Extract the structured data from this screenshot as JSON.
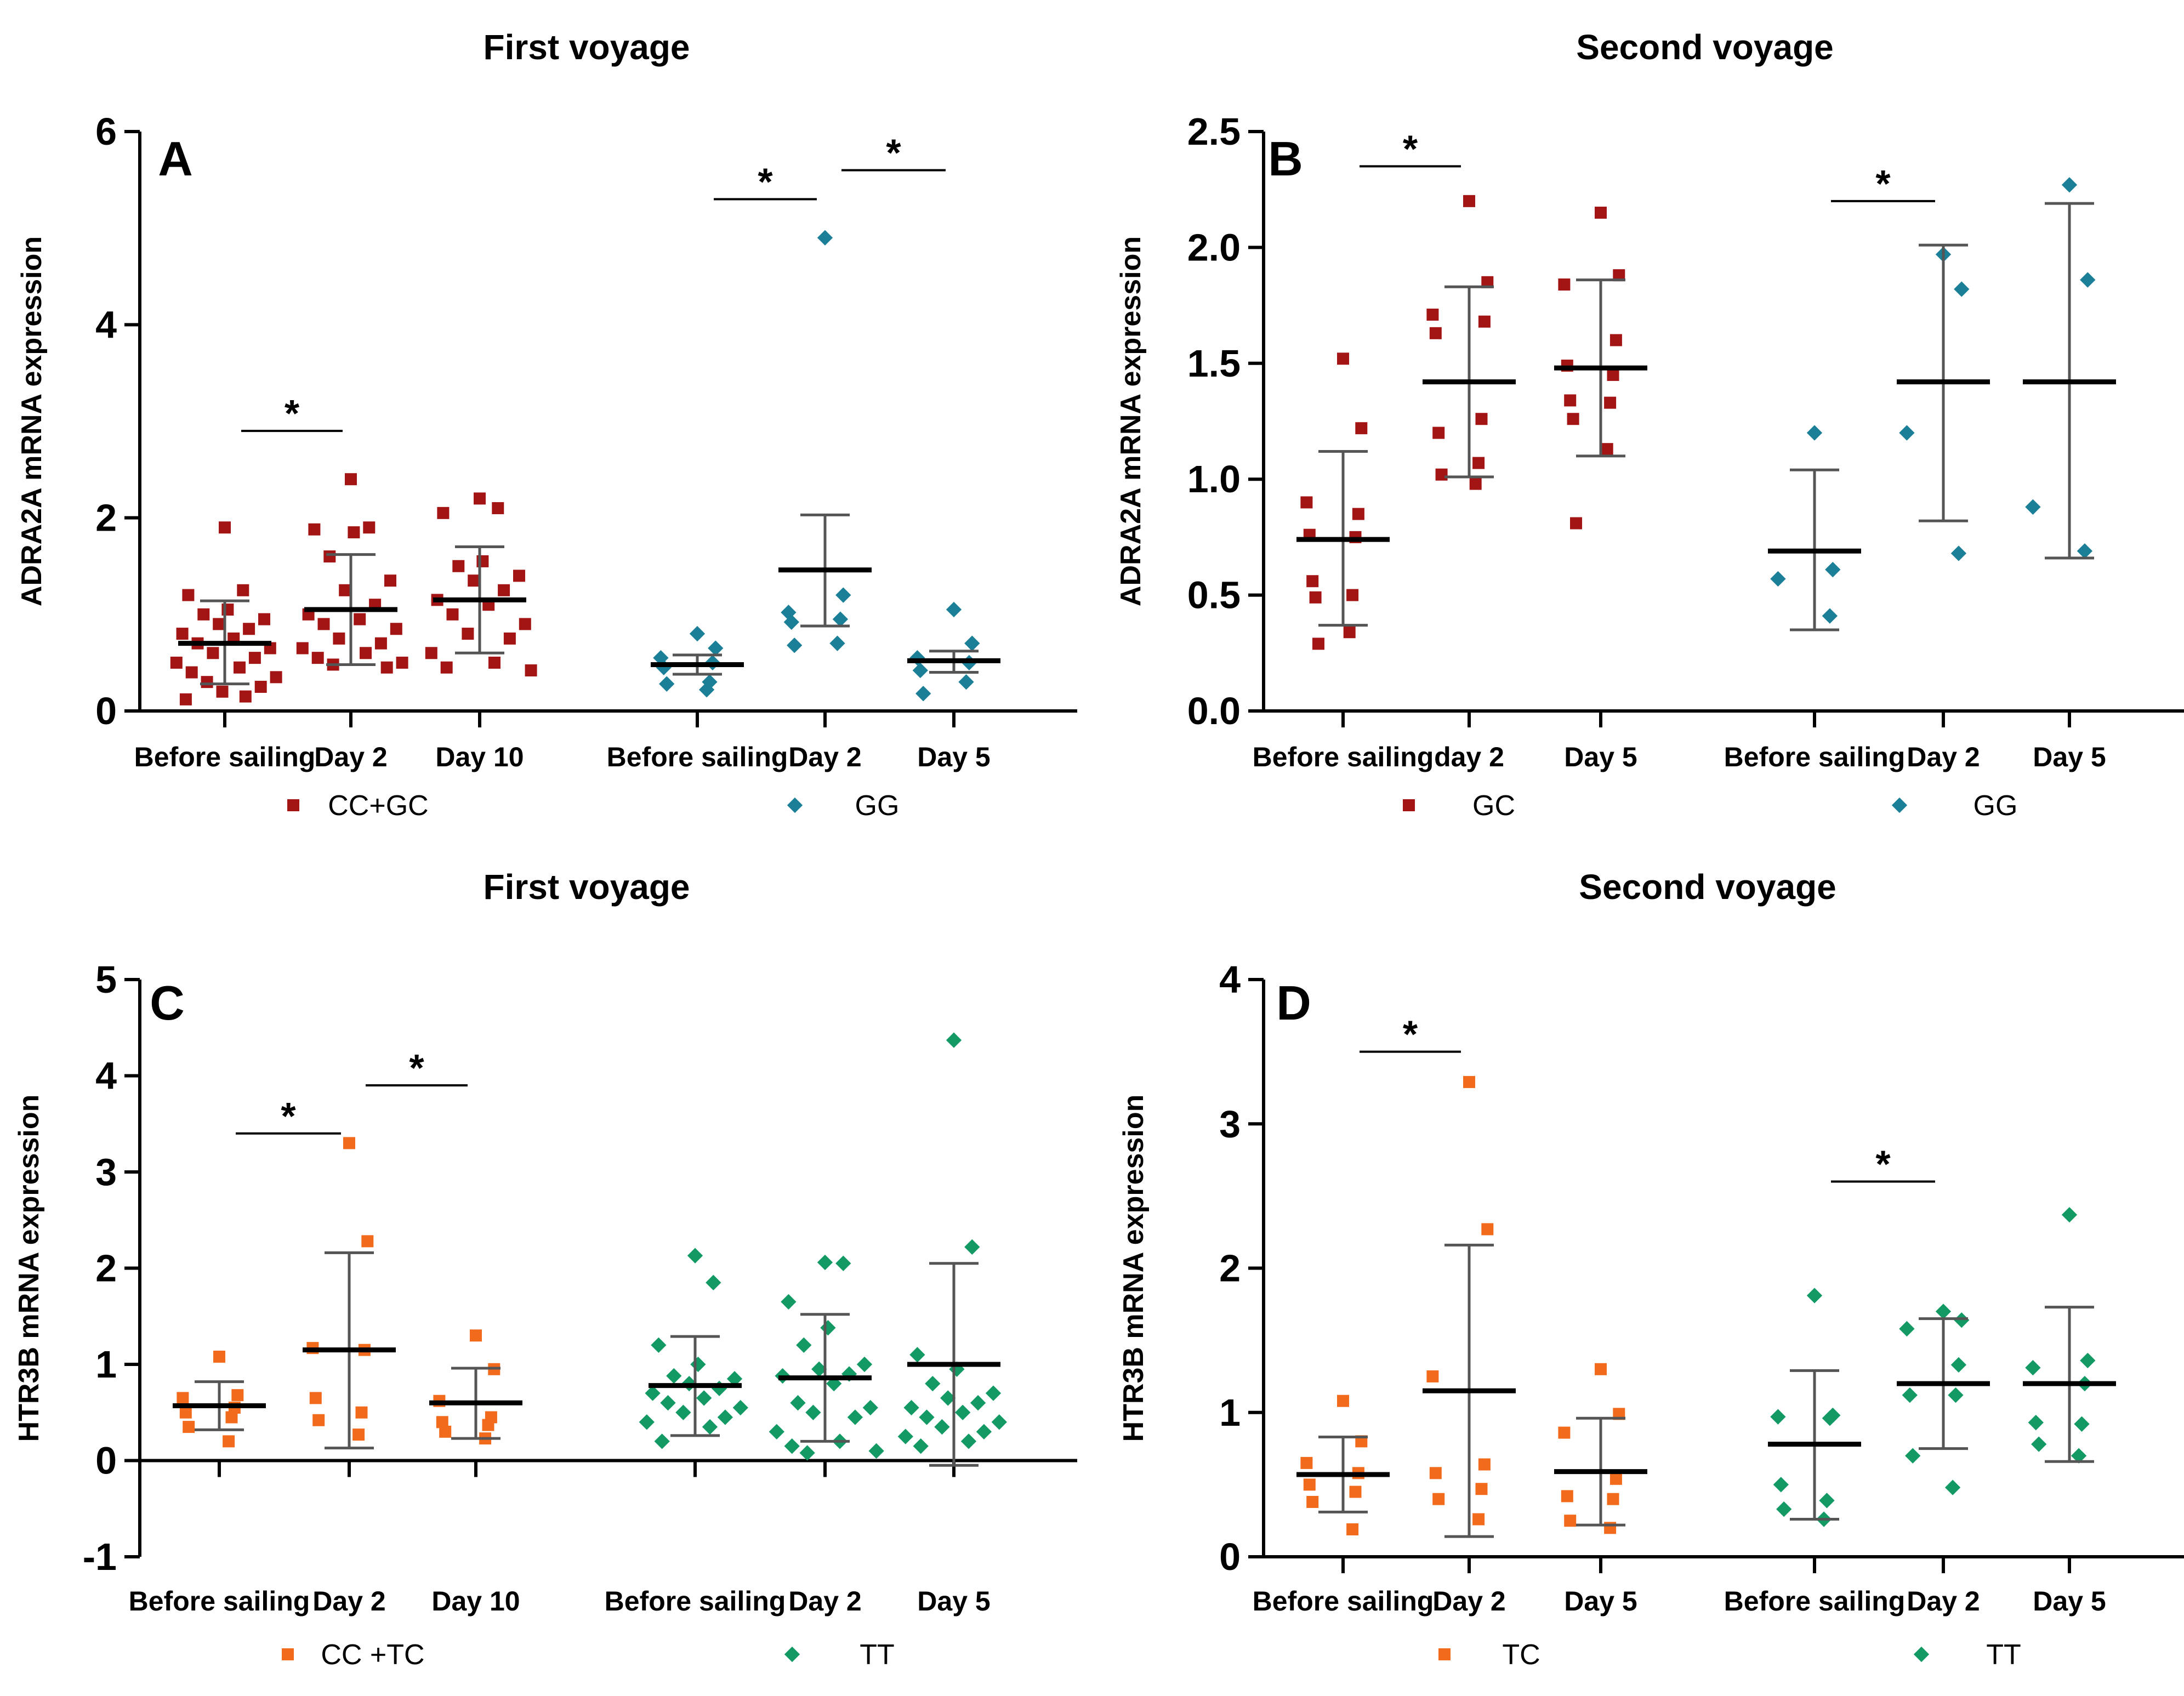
{
  "chart_data": [
    {
      "type": "scatter",
      "panel_label": "A",
      "title": "First voyage",
      "ylabel": "ADRA2A mRNA expression",
      "ylim": [
        0,
        6
      ],
      "yticks": [
        0,
        2,
        4,
        6
      ],
      "categories": [
        "Before sailing",
        "Day 2",
        "Day 10",
        "Before sailing",
        "Day 2",
        "Day 5"
      ],
      "legend": [
        {
          "name": "CC+GC",
          "marker": "square",
          "color": "#a31515"
        },
        {
          "name": "GG",
          "marker": "diamond",
          "color": "#1a7f97"
        }
      ],
      "groups": [
        {
          "category_index": 0,
          "series": 0,
          "mean": 0.7,
          "sd_low": 0.28,
          "sd_high": 1.14,
          "points": [
            1.9,
            1.25,
            1.2,
            1.05,
            1.0,
            0.95,
            0.9,
            0.85,
            0.8,
            0.75,
            0.7,
            0.65,
            0.6,
            0.55,
            0.5,
            0.45,
            0.4,
            0.35,
            0.3,
            0.25,
            0.2,
            0.15,
            0.12
          ]
        },
        {
          "category_index": 1,
          "series": 0,
          "mean": 1.05,
          "sd_low": 0.48,
          "sd_high": 1.62,
          "points": [
            2.4,
            1.9,
            1.88,
            1.85,
            1.6,
            1.35,
            1.25,
            1.1,
            1.0,
            0.95,
            0.9,
            0.85,
            0.75,
            0.7,
            0.65,
            0.6,
            0.55,
            0.5,
            0.48,
            0.45
          ]
        },
        {
          "category_index": 2,
          "series": 0,
          "mean": 1.15,
          "sd_low": 0.6,
          "sd_high": 1.7,
          "points": [
            2.2,
            2.1,
            2.05,
            1.55,
            1.5,
            1.4,
            1.35,
            1.25,
            1.15,
            1.1,
            1.0,
            0.9,
            0.8,
            0.75,
            0.6,
            0.5,
            0.45,
            0.42
          ]
        },
        {
          "category_index": 3,
          "series": 1,
          "mean": 0.48,
          "sd_low": 0.38,
          "sd_high": 0.58,
          "points": [
            0.8,
            0.65,
            0.55,
            0.5,
            0.45,
            0.3,
            0.28,
            0.22
          ]
        },
        {
          "category_index": 4,
          "series": 1,
          "mean": 1.46,
          "sd_low": 0.88,
          "sd_high": 2.03,
          "points": [
            4.9,
            1.2,
            1.02,
            0.95,
            0.92,
            0.7,
            0.68
          ]
        },
        {
          "category_index": 5,
          "series": 1,
          "mean": 0.52,
          "sd_low": 0.4,
          "sd_high": 0.62,
          "points": [
            1.05,
            0.7,
            0.55,
            0.5,
            0.42,
            0.3,
            0.18
          ]
        }
      ],
      "significance": [
        {
          "from": 0,
          "to": 1,
          "y": 2.9,
          "label": "*"
        },
        {
          "from": 3,
          "to": 4,
          "y": 5.3,
          "label": "*"
        },
        {
          "from": 4,
          "to": 5,
          "y": 5.6,
          "label": "*"
        }
      ]
    },
    {
      "type": "scatter",
      "panel_label": "B",
      "title": "Second voyage",
      "ylabel": "ADRA2A mRNA expression",
      "ylim": [
        0,
        2.5
      ],
      "yticks": [
        0.0,
        0.5,
        1.0,
        1.5,
        2.0,
        2.5
      ],
      "ytick_labels": [
        "0.0",
        "0.5",
        "1.0",
        "1.5",
        "2.0",
        "2.5"
      ],
      "categories": [
        "Before sailing",
        "day 2",
        "Day 5",
        "Before sailing",
        "Day 2",
        "Day 5"
      ],
      "legend": [
        {
          "name": "GC",
          "marker": "square",
          "color": "#a31515"
        },
        {
          "name": "GG",
          "marker": "diamond",
          "color": "#1a7f97"
        }
      ],
      "groups": [
        {
          "category_index": 0,
          "series": 0,
          "mean": 0.74,
          "sd_low": 0.37,
          "sd_high": 1.12,
          "points": [
            1.52,
            1.22,
            0.9,
            0.85,
            0.76,
            0.75,
            0.56,
            0.5,
            0.49,
            0.34,
            0.29
          ]
        },
        {
          "category_index": 1,
          "series": 0,
          "mean": 1.42,
          "sd_low": 1.01,
          "sd_high": 1.83,
          "points": [
            2.2,
            1.85,
            1.71,
            1.68,
            1.63,
            1.26,
            1.2,
            1.07,
            1.02,
            0.98
          ]
        },
        {
          "category_index": 2,
          "series": 0,
          "mean": 1.48,
          "sd_low": 1.1,
          "sd_high": 1.86,
          "points": [
            2.15,
            1.88,
            1.84,
            1.6,
            1.49,
            1.45,
            1.34,
            1.33,
            1.26,
            1.13,
            0.81
          ]
        },
        {
          "category_index": 3,
          "series": 1,
          "mean": 0.69,
          "sd_low": 0.35,
          "sd_high": 1.04,
          "points": [
            1.2,
            0.61,
            0.57,
            0.41
          ]
        },
        {
          "category_index": 4,
          "series": 1,
          "mean": 1.42,
          "sd_low": 0.82,
          "sd_high": 2.01,
          "points": [
            1.97,
            1.82,
            1.2,
            0.68
          ]
        },
        {
          "category_index": 5,
          "series": 1,
          "mean": 1.42,
          "sd_low": 0.66,
          "sd_high": 2.19,
          "points": [
            2.27,
            1.86,
            0.88,
            0.69
          ]
        }
      ],
      "significance": [
        {
          "from": 0,
          "to": 1,
          "y": 2.35,
          "label": "*"
        },
        {
          "from": 3,
          "to": 4,
          "y": 2.2,
          "label": "*"
        }
      ]
    },
    {
      "type": "scatter",
      "panel_label": "C",
      "title": "First voyage",
      "ylabel": "HTR3B mRNA expression",
      "ylim": [
        -1,
        5
      ],
      "yticks": [
        -1,
        0,
        1,
        2,
        3,
        4,
        5
      ],
      "categories": [
        "Before sailing",
        "Day 2",
        "Day 10",
        "Before sailing",
        "Day 2",
        "Day 5"
      ],
      "legend": [
        {
          "name": "CC +TC",
          "marker": "square",
          "color": "#f26b1d"
        },
        {
          "name": "TT",
          "marker": "diamond",
          "color": "#139a64"
        }
      ],
      "groups": [
        {
          "category_index": 0,
          "series": 0,
          "mean": 0.57,
          "sd_low": 0.32,
          "sd_high": 0.82,
          "points": [
            1.08,
            0.68,
            0.65,
            0.55,
            0.5,
            0.45,
            0.35,
            0.2
          ]
        },
        {
          "category_index": 1,
          "series": 0,
          "mean": 1.15,
          "sd_low": 0.13,
          "sd_high": 2.16,
          "points": [
            3.3,
            2.28,
            1.17,
            1.15,
            0.65,
            0.5,
            0.42,
            0.27
          ]
        },
        {
          "category_index": 2,
          "series": 0,
          "mean": 0.6,
          "sd_low": 0.23,
          "sd_high": 0.96,
          "points": [
            1.3,
            0.95,
            0.62,
            0.45,
            0.4,
            0.37,
            0.3,
            0.23
          ]
        },
        {
          "category_index": 3,
          "series": 1,
          "mean": 0.78,
          "sd_low": 0.26,
          "sd_high": 1.29,
          "points": [
            2.13,
            1.85,
            1.2,
            1.0,
            0.88,
            0.85,
            0.8,
            0.75,
            0.7,
            0.65,
            0.6,
            0.55,
            0.5,
            0.45,
            0.4,
            0.35,
            0.2
          ]
        },
        {
          "category_index": 4,
          "series": 1,
          "mean": 0.86,
          "sd_low": 0.2,
          "sd_high": 1.52,
          "points": [
            2.06,
            2.05,
            1.65,
            1.38,
            1.2,
            1.0,
            0.95,
            0.9,
            0.88,
            0.8,
            0.6,
            0.55,
            0.5,
            0.45,
            0.3,
            0.2,
            0.15,
            0.1,
            0.08
          ]
        },
        {
          "category_index": 5,
          "series": 1,
          "mean": 1.0,
          "sd_low": -0.05,
          "sd_high": 2.05,
          "points": [
            4.37,
            2.22,
            1.1,
            0.95,
            0.8,
            0.7,
            0.65,
            0.6,
            0.55,
            0.5,
            0.45,
            0.4,
            0.35,
            0.3,
            0.25,
            0.2,
            0.15
          ]
        }
      ],
      "significance": [
        {
          "from": 0,
          "to": 1,
          "y": 3.4,
          "label": "*"
        },
        {
          "from": 1,
          "to": 2,
          "y": 3.9,
          "label": "*"
        }
      ]
    },
    {
      "type": "scatter",
      "panel_label": "D",
      "title": "Second voyage",
      "ylabel": "HTR3B mRNA expression",
      "ylim": [
        0,
        4
      ],
      "yticks": [
        0,
        1,
        2,
        3,
        4
      ],
      "categories": [
        "Before sailing",
        "Day 2",
        "Day 5",
        "Before sailing",
        "Day 2",
        "Day 5"
      ],
      "legend": [
        {
          "name": "TC",
          "marker": "square",
          "color": "#f26b1d"
        },
        {
          "name": "TT",
          "marker": "diamond",
          "color": "#139a64"
        }
      ],
      "groups": [
        {
          "category_index": 0,
          "series": 0,
          "mean": 0.57,
          "sd_low": 0.31,
          "sd_high": 0.83,
          "points": [
            1.08,
            0.8,
            0.65,
            0.58,
            0.5,
            0.45,
            0.38,
            0.19
          ]
        },
        {
          "category_index": 1,
          "series": 0,
          "mean": 1.15,
          "sd_low": 0.14,
          "sd_high": 2.16,
          "points": [
            3.29,
            2.27,
            1.25,
            0.64,
            0.58,
            0.47,
            0.4,
            0.26
          ]
        },
        {
          "category_index": 2,
          "series": 0,
          "mean": 0.59,
          "sd_low": 0.22,
          "sd_high": 0.96,
          "points": [
            1.3,
            0.99,
            0.86,
            0.54,
            0.42,
            0.4,
            0.25,
            0.2
          ]
        },
        {
          "category_index": 3,
          "series": 1,
          "mean": 0.78,
          "sd_low": 0.26,
          "sd_high": 1.29,
          "points": [
            1.81,
            0.98,
            0.97,
            0.96,
            0.5,
            0.39,
            0.33,
            0.26
          ]
        },
        {
          "category_index": 4,
          "series": 1,
          "mean": 1.2,
          "sd_low": 0.75,
          "sd_high": 1.65,
          "points": [
            1.7,
            1.64,
            1.58,
            1.33,
            1.12,
            1.12,
            0.7,
            0.48
          ]
        },
        {
          "category_index": 5,
          "series": 1,
          "mean": 1.2,
          "sd_low": 0.66,
          "sd_high": 1.73,
          "points": [
            2.37,
            1.36,
            1.31,
            1.2,
            0.93,
            0.92,
            0.78,
            0.7
          ]
        }
      ],
      "significance": [
        {
          "from": 0,
          "to": 1,
          "y": 3.5,
          "label": "*"
        },
        {
          "from": 3,
          "to": 4,
          "y": 2.6,
          "label": "*"
        }
      ]
    }
  ]
}
